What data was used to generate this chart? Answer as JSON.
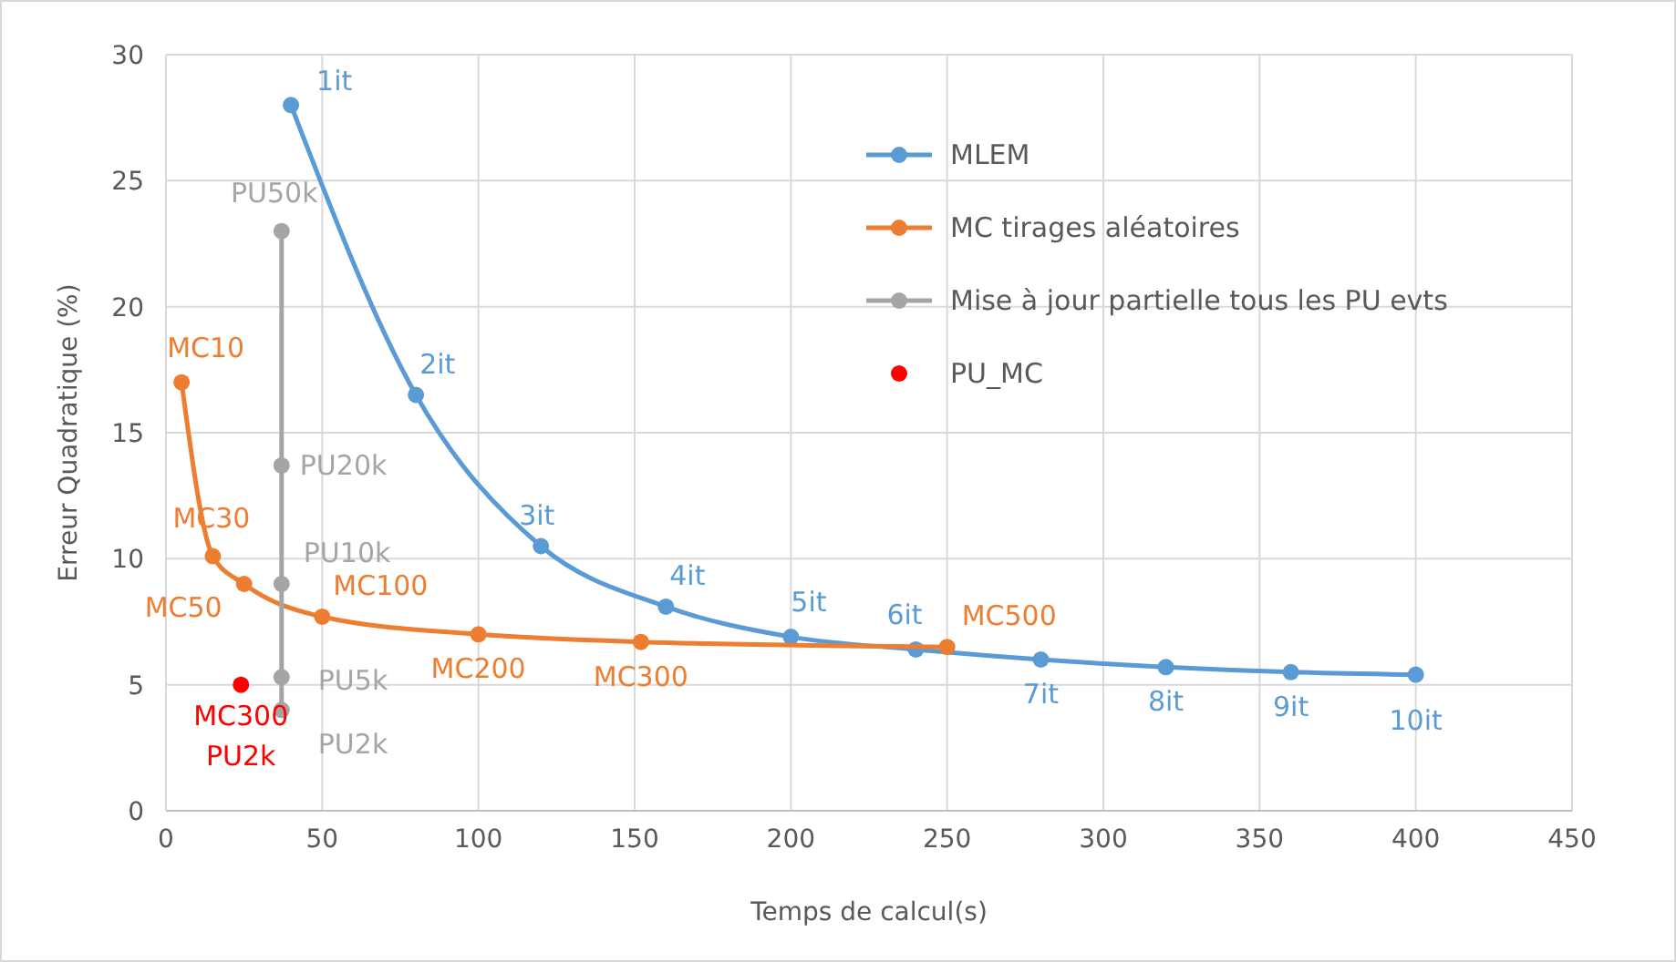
{
  "chart_data": {
    "type": "line",
    "xlabel": "Temps de calcul(s)",
    "ylabel": "Erreur Quadratique (%)",
    "xlim": [
      0,
      450
    ],
    "xticks": [
      0,
      50,
      100,
      150,
      200,
      250,
      300,
      350,
      400,
      450
    ],
    "ylim": [
      0,
      30
    ],
    "yticks": [
      0,
      5,
      10,
      15,
      20,
      25,
      30
    ],
    "grid": true,
    "legend": "top right",
    "marker": "circle",
    "series": [
      {
        "name": "MLEM",
        "color": "#5b9bd5",
        "x": [
          40,
          80,
          120,
          160,
          200,
          240,
          280,
          320,
          360,
          400
        ],
        "values": [
          28,
          16.5,
          10.5,
          8.1,
          6.9,
          6.4,
          6.0,
          5.7,
          5.5,
          5.4
        ]
      },
      {
        "name": "MC tirages aléatoires",
        "color": "#ed7d31",
        "x": [
          5,
          15,
          25,
          50,
          100,
          152,
          250
        ],
        "values": [
          17,
          10.1,
          9,
          7.7,
          7,
          6.7,
          6.5
        ]
      },
      {
        "name": "Mise à jour partielle tous les PU evts",
        "color": "#a5a5a5",
        "x": [
          37,
          37,
          37,
          37,
          37
        ],
        "values": [
          23,
          13.7,
          9,
          5.3,
          4
        ]
      },
      {
        "name": "PU_MC",
        "type": "scatter",
        "color": "#ff0000",
        "x": [
          24
        ],
        "values": [
          5
        ]
      }
    ],
    "annotations": [
      {
        "text": "1it",
        "x": 40,
        "y": 28
      },
      {
        "text": "2it",
        "x": 80,
        "y": 16.5
      },
      {
        "text": "3it",
        "x": 120,
        "y": 10.5
      },
      {
        "text": "4it",
        "x": 160,
        "y": 8.1
      },
      {
        "text": "5it",
        "x": 200,
        "y": 6.9
      },
      {
        "text": "6it",
        "x": 240,
        "y": 6.4
      },
      {
        "text": "7it",
        "x": 280,
        "y": 6.0
      },
      {
        "text": "8it",
        "x": 320,
        "y": 5.7
      },
      {
        "text": "9it",
        "x": 360,
        "y": 5.5
      },
      {
        "text": "10it",
        "x": 400,
        "y": 5.4
      },
      {
        "text": "MC10",
        "x": 5,
        "y": 17
      },
      {
        "text": "MC30",
        "x": 15,
        "y": 10.1
      },
      {
        "text": "MC50",
        "x": 25,
        "y": 9
      },
      {
        "text": "MC100",
        "x": 50,
        "y": 7.7
      },
      {
        "text": "MC200",
        "x": 100,
        "y": 7
      },
      {
        "text": "MC300",
        "x": 152,
        "y": 6.7
      },
      {
        "text": "MC500",
        "x": 250,
        "y": 6.5
      },
      {
        "text": "PU50k",
        "x": 37,
        "y": 23
      },
      {
        "text": "PU20k",
        "x": 37,
        "y": 13.7
      },
      {
        "text": "PU10k",
        "x": 37,
        "y": 9
      },
      {
        "text": "PU5k",
        "x": 37,
        "y": 5.3
      },
      {
        "text": "PU2k",
        "x": 37,
        "y": 4
      },
      {
        "text": "MC300\nPU2k",
        "x": 24,
        "y": 5
      }
    ]
  }
}
